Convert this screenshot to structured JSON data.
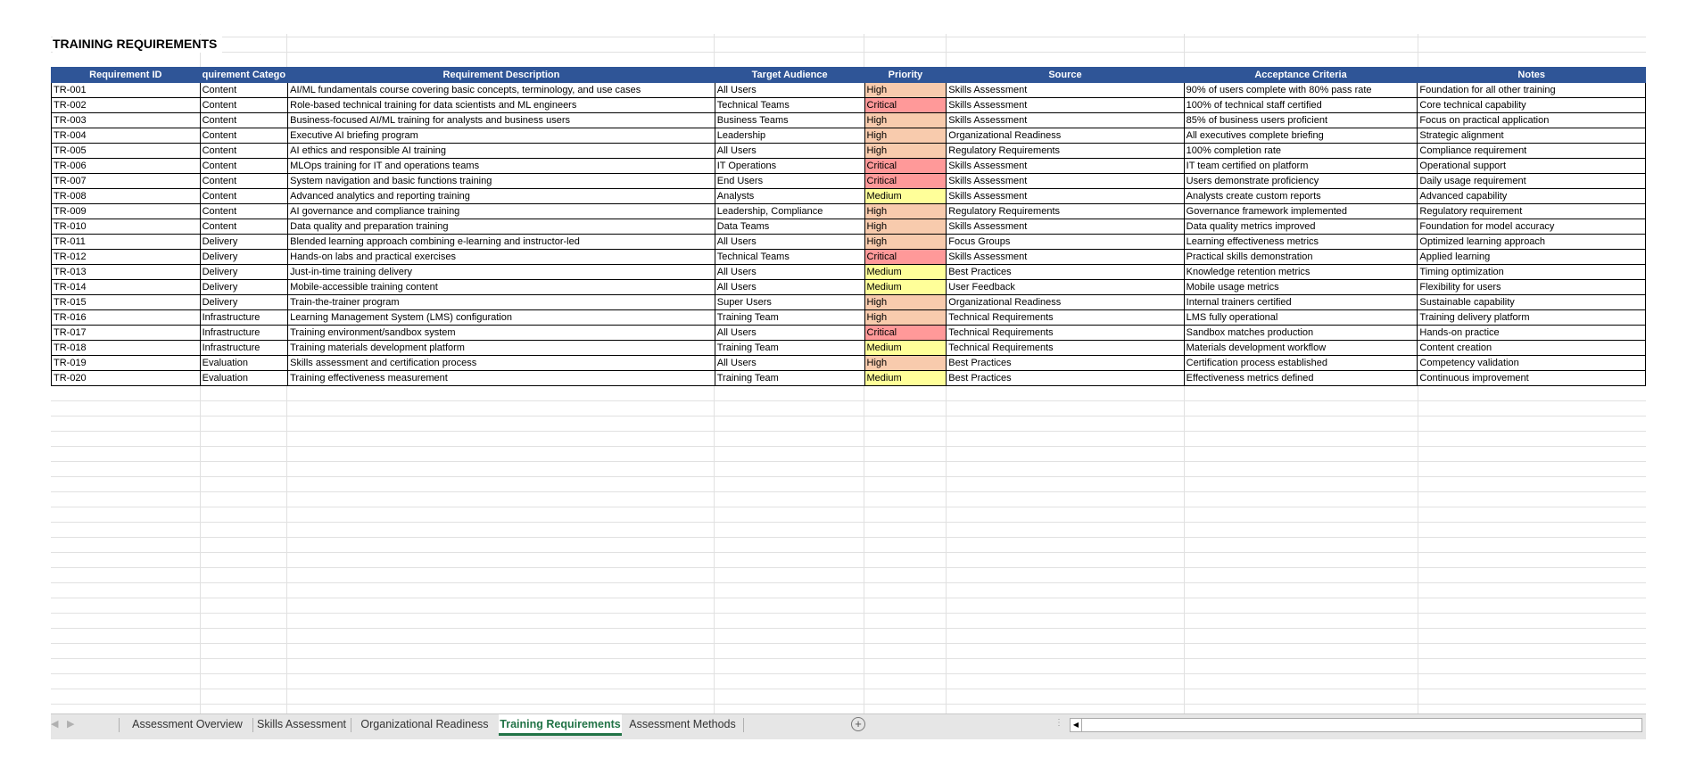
{
  "title": "TRAINING REQUIREMENTS",
  "colors": {
    "header_bg": "#2F5597",
    "High": "#F8CBAD",
    "Critical": "#FF9999",
    "Medium": "#FFFF99",
    "active_tab": "#217346"
  },
  "columns": [
    "Requirement ID",
    "quirement Catego",
    "Requirement Description",
    "Target Audience",
    "Priority",
    "Source",
    "Acceptance Criteria",
    "Notes"
  ],
  "rows": [
    [
      "TR-001",
      "Content",
      "AI/ML fundamentals course covering basic concepts, terminology, and use cases",
      "All Users",
      "High",
      "Skills Assessment",
      "90% of users complete with 80% pass rate",
      "Foundation for all other training"
    ],
    [
      "TR-002",
      "Content",
      "Role-based technical training for data scientists and ML engineers",
      "Technical Teams",
      "Critical",
      "Skills Assessment",
      "100% of technical staff certified",
      "Core technical capability"
    ],
    [
      "TR-003",
      "Content",
      "Business-focused AI/ML training for analysts and business users",
      "Business Teams",
      "High",
      "Skills Assessment",
      "85% of business users proficient",
      "Focus on practical application"
    ],
    [
      "TR-004",
      "Content",
      "Executive AI briefing program",
      "Leadership",
      "High",
      "Organizational Readiness",
      "All executives complete briefing",
      "Strategic alignment"
    ],
    [
      "TR-005",
      "Content",
      "AI ethics and responsible AI training",
      "All Users",
      "High",
      "Regulatory Requirements",
      "100% completion rate",
      "Compliance requirement"
    ],
    [
      "TR-006",
      "Content",
      "MLOps training for IT and operations teams",
      "IT Operations",
      "Critical",
      "Skills Assessment",
      "IT team certified on platform",
      "Operational support"
    ],
    [
      "TR-007",
      "Content",
      "System navigation and basic functions training",
      "End Users",
      "Critical",
      "Skills Assessment",
      "Users demonstrate proficiency",
      "Daily usage requirement"
    ],
    [
      "TR-008",
      "Content",
      "Advanced analytics and reporting training",
      "Analysts",
      "Medium",
      "Skills Assessment",
      "Analysts create custom reports",
      "Advanced capability"
    ],
    [
      "TR-009",
      "Content",
      "AI governance and compliance training",
      "Leadership, Compliance",
      "High",
      "Regulatory Requirements",
      "Governance framework implemented",
      "Regulatory requirement"
    ],
    [
      "TR-010",
      "Content",
      "Data quality and preparation training",
      "Data Teams",
      "High",
      "Skills Assessment",
      "Data quality metrics improved",
      "Foundation for model accuracy"
    ],
    [
      "TR-011",
      "Delivery",
      "Blended learning approach combining e-learning and instructor-led",
      "All Users",
      "High",
      "Focus Groups",
      "Learning effectiveness metrics",
      "Optimized learning approach"
    ],
    [
      "TR-012",
      "Delivery",
      "Hands-on labs and practical exercises",
      "Technical Teams",
      "Critical",
      "Skills Assessment",
      "Practical skills demonstration",
      "Applied learning"
    ],
    [
      "TR-013",
      "Delivery",
      "Just-in-time training delivery",
      "All Users",
      "Medium",
      "Best Practices",
      "Knowledge retention metrics",
      "Timing optimization"
    ],
    [
      "TR-014",
      "Delivery",
      "Mobile-accessible training content",
      "All Users",
      "Medium",
      "User Feedback",
      "Mobile usage metrics",
      "Flexibility for users"
    ],
    [
      "TR-015",
      "Delivery",
      "Train-the-trainer program",
      "Super Users",
      "High",
      "Organizational Readiness",
      "Internal trainers certified",
      "Sustainable capability"
    ],
    [
      "TR-016",
      "Infrastructure",
      "Learning Management System (LMS) configuration",
      "Training Team",
      "High",
      "Technical Requirements",
      "LMS fully operational",
      "Training delivery platform"
    ],
    [
      "TR-017",
      "Infrastructure",
      "Training environment/sandbox system",
      "All Users",
      "Critical",
      "Technical Requirements",
      "Sandbox matches production",
      "Hands-on practice"
    ],
    [
      "TR-018",
      "Infrastructure",
      "Training materials development platform",
      "Training Team",
      "Medium",
      "Technical Requirements",
      "Materials development workflow",
      "Content creation"
    ],
    [
      "TR-019",
      "Evaluation",
      "Skills assessment and certification process",
      "All Users",
      "High",
      "Best Practices",
      "Certification process established",
      "Competency validation"
    ],
    [
      "TR-020",
      "Evaluation",
      "Training effectiveness measurement",
      "Training Team",
      "Medium",
      "Best Practices",
      "Effectiveness metrics defined",
      "Continuous improvement"
    ]
  ],
  "tabs": [
    {
      "label": "Assessment Overview",
      "active": false
    },
    {
      "label": "Skills Assessment",
      "active": false
    },
    {
      "label": "Organizational Readiness",
      "active": false
    },
    {
      "label": "Training Requirements",
      "active": true
    },
    {
      "label": "Assessment Methods",
      "active": false
    }
  ],
  "icons": {
    "prev": "chevron-left-icon",
    "next": "chevron-right-icon",
    "add": "plus-circle-icon"
  }
}
